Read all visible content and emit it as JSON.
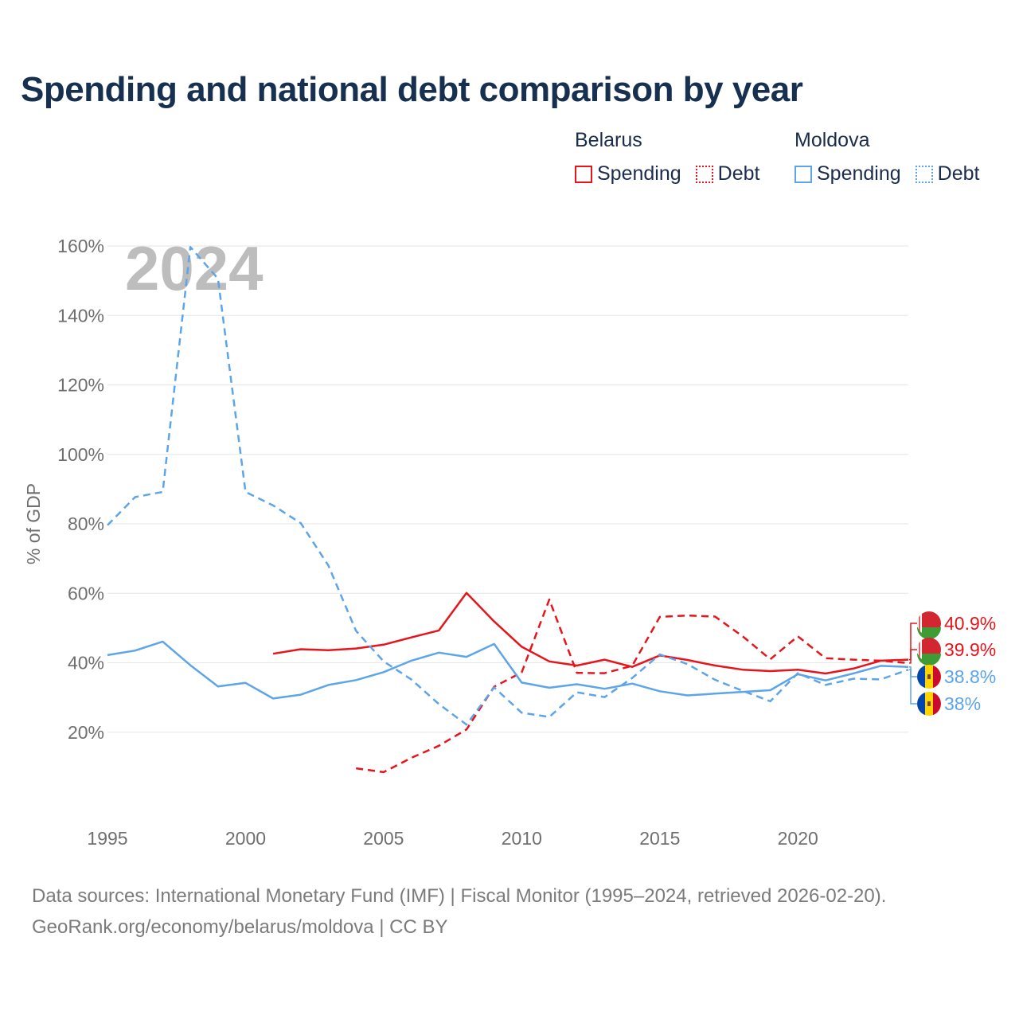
{
  "title": "Spending and national debt comparison by year",
  "legend": {
    "groups": [
      {
        "name": "Belarus",
        "items": [
          {
            "label": "Spending"
          },
          {
            "label": "Debt"
          }
        ]
      },
      {
        "name": "Moldova",
        "items": [
          {
            "label": "Spending"
          },
          {
            "label": "Debt"
          }
        ]
      }
    ]
  },
  "colors": {
    "belarus": "#e8141b",
    "moldova": "#5da5e8",
    "grid": "#e6e6e6",
    "tick": "#6f6f6f",
    "year": "#bdbdbd"
  },
  "chart_data": {
    "type": "line",
    "title": "Spending and national debt comparison by year",
    "ylabel": "% of GDP",
    "xlabel": "",
    "year_label": "2024",
    "xlim": [
      1995,
      2024
    ],
    "ylim": [
      0,
      160
    ],
    "x_ticks": [
      1995,
      2000,
      2005,
      2010,
      2015,
      2020
    ],
    "x_tick_labels": [
      "1995",
      "2000",
      "2005",
      "2010",
      "2015",
      "2020"
    ],
    "y_ticks": [
      20,
      40,
      60,
      80,
      100,
      120,
      140,
      160
    ],
    "y_tick_labels": [
      "20%",
      "40%",
      "60%",
      "80%",
      "100%",
      "120%",
      "140%",
      "160%"
    ],
    "grid": true,
    "legend_position": "top-right",
    "series": [
      {
        "name": "Belarus Spending",
        "country": "Belarus",
        "style": "solid",
        "color": "#e8141b",
        "x": [
          2001,
          2002,
          2003,
          2004,
          2005,
          2006,
          2007,
          2008,
          2009,
          2010,
          2011,
          2012,
          2013,
          2014,
          2015,
          2016,
          2017,
          2018,
          2019,
          2020,
          2021,
          2022,
          2023,
          2024
        ],
        "values": [
          42.6,
          43.9,
          43.6,
          44.1,
          45.2,
          47.3,
          49.3,
          60.1,
          51.9,
          44.6,
          40.4,
          39.2,
          40.9,
          38.8,
          42.1,
          40.8,
          39.2,
          38.0,
          37.6,
          38.0,
          36.9,
          38.3,
          40.6,
          40.9
        ],
        "end_label": "40.9%"
      },
      {
        "name": "Belarus Debt",
        "country": "Belarus",
        "style": "dashed",
        "color": "#e8141b",
        "x": [
          2004,
          2005,
          2006,
          2007,
          2008,
          2009,
          2010,
          2011,
          2012,
          2013,
          2014,
          2015,
          2016,
          2017,
          2018,
          2019,
          2020,
          2021,
          2022,
          2023,
          2024
        ],
        "values": [
          9.6,
          8.5,
          12.6,
          16.1,
          20.8,
          33.1,
          37.2,
          58.2,
          37.1,
          37.0,
          39.1,
          53.2,
          53.6,
          53.3,
          47.6,
          41.0,
          47.6,
          41.3,
          40.9,
          40.6,
          39.9
        ],
        "end_label": "39.9%"
      },
      {
        "name": "Moldova Spending",
        "country": "Moldova",
        "style": "solid",
        "color": "#5da5e8",
        "x": [
          1995,
          1996,
          1997,
          1998,
          1999,
          2000,
          2001,
          2002,
          2003,
          2004,
          2005,
          2006,
          2007,
          2008,
          2009,
          2010,
          2011,
          2012,
          2013,
          2014,
          2015,
          2016,
          2017,
          2018,
          2019,
          2020,
          2021,
          2022,
          2023,
          2024
        ],
        "values": [
          42.2,
          43.5,
          46.1,
          39.3,
          33.2,
          34.2,
          29.7,
          30.8,
          33.6,
          35.0,
          37.3,
          40.6,
          42.9,
          41.7,
          45.4,
          34.3,
          32.8,
          33.8,
          32.5,
          34.0,
          31.8,
          30.6,
          31.1,
          31.6,
          32.1,
          36.7,
          34.9,
          36.9,
          39.1,
          38.8
        ],
        "end_label": "38.8%"
      },
      {
        "name": "Moldova Debt",
        "country": "Moldova",
        "style": "dashed",
        "color": "#5da5e8",
        "x": [
          1995,
          1996,
          1997,
          1998,
          1999,
          2000,
          2001,
          2002,
          2003,
          2004,
          2005,
          2006,
          2007,
          2008,
          2009,
          2010,
          2011,
          2012,
          2013,
          2014,
          2015,
          2016,
          2017,
          2018,
          2019,
          2020,
          2021,
          2022,
          2023,
          2024
        ],
        "values": [
          79.6,
          87.7,
          89.2,
          159.7,
          150.6,
          89.2,
          85.3,
          80.2,
          68.0,
          49.2,
          40.4,
          35.2,
          28.1,
          22.2,
          32.9,
          25.6,
          24.4,
          31.5,
          30.1,
          35.6,
          42.4,
          39.6,
          35.1,
          31.9,
          28.9,
          37.0,
          33.6,
          35.4,
          35.2,
          38.0
        ],
        "end_label": "38%"
      }
    ]
  },
  "footer": {
    "line1": "Data sources: International Monetary Fund (IMF) | Fiscal Monitor (1995–2024, retrieved 2026-02-20).",
    "line2": "GeoRank.org/economy/belarus/moldova | CC BY"
  }
}
